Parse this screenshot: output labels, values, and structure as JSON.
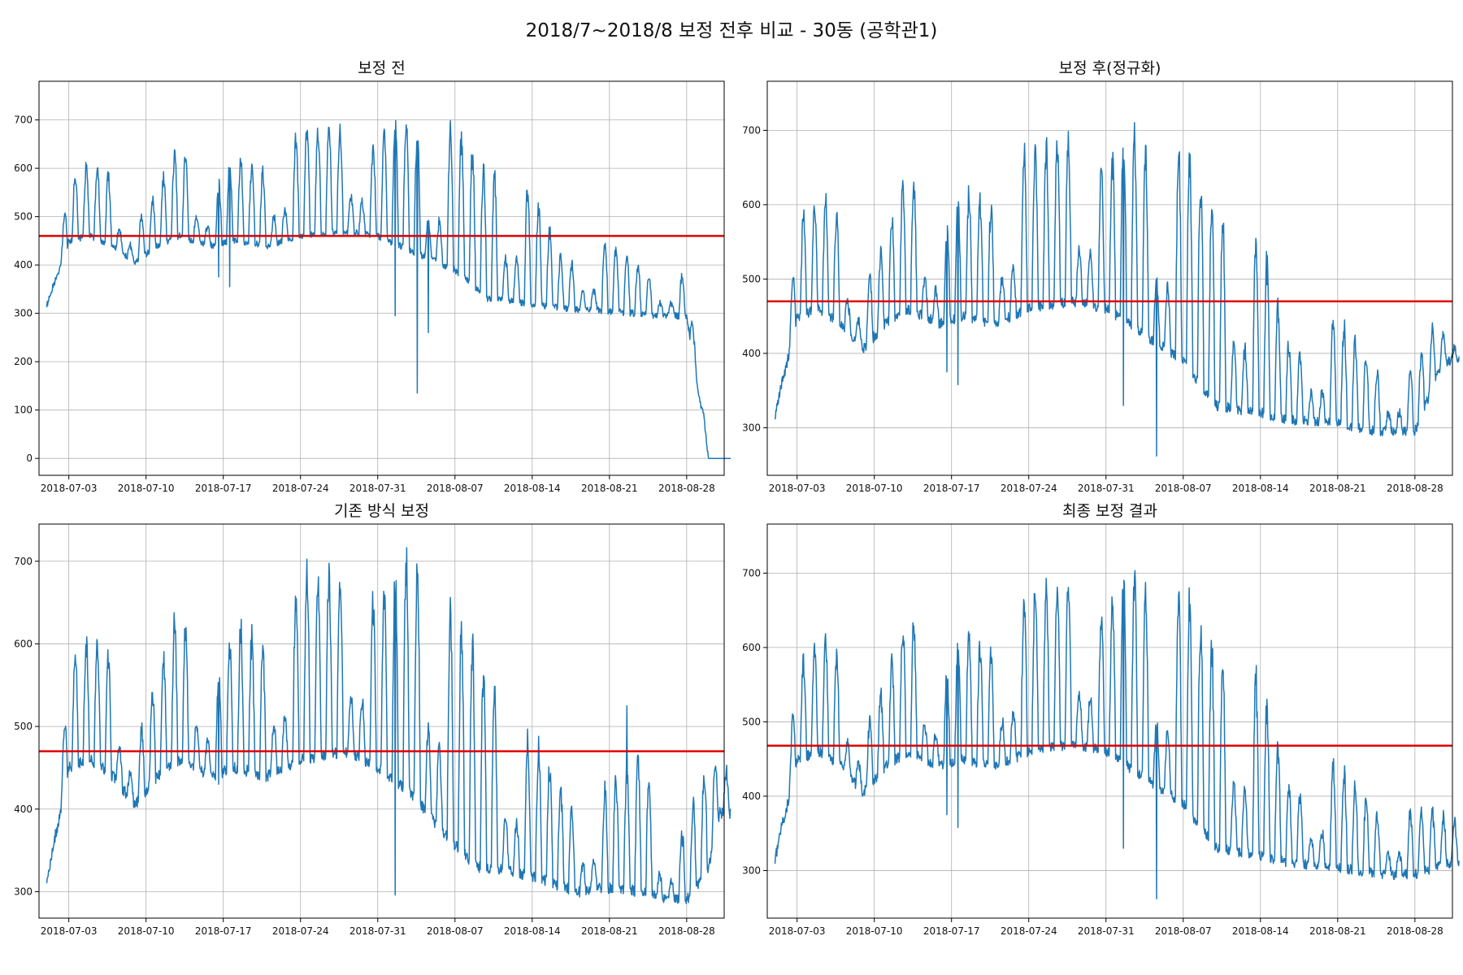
{
  "figure": {
    "title": "2018/7~2018/8 보정 전후 비교 - 30동 (공학관1)"
  },
  "chart_data": [
    {
      "type": "line",
      "title": "보정 전",
      "x_ticks": [
        "2018-07-03",
        "2018-07-10",
        "2018-07-17",
        "2018-07-24",
        "2018-07-31",
        "2018-08-07",
        "2018-08-14",
        "2018-08-21",
        "2018-08-28"
      ],
      "x_range": [
        "2018-07-01",
        "2018-08-31"
      ],
      "ylim": [
        -35,
        780
      ],
      "y_ticks": [
        0,
        100,
        200,
        300,
        400,
        500,
        600,
        700
      ],
      "grid": true,
      "reference_line": {
        "value": 460,
        "color": "#e00000"
      },
      "series_color": "#1f77b4",
      "trend": [
        {
          "date": "2018-07-01",
          "low": 315,
          "high": 320
        },
        {
          "date": "2018-07-02",
          "low": 380,
          "high": 400
        },
        {
          "date": "2018-07-03",
          "low": 450,
          "high": 580
        },
        {
          "date": "2018-07-05",
          "low": 460,
          "high": 620
        },
        {
          "date": "2018-07-07",
          "low": 440,
          "high": 590
        },
        {
          "date": "2018-07-09",
          "low": 405,
          "high": 485
        },
        {
          "date": "2018-07-11",
          "low": 440,
          "high": 560
        },
        {
          "date": "2018-07-13",
          "low": 460,
          "high": 665
        },
        {
          "date": "2018-07-16",
          "low": 440,
          "high": 545
        },
        {
          "date": "2018-07-18",
          "low": 450,
          "high": 635
        },
        {
          "date": "2018-07-21",
          "low": 440,
          "high": 600
        },
        {
          "date": "2018-07-24",
          "low": 460,
          "high": 690
        },
        {
          "date": "2018-07-28",
          "low": 470,
          "high": 700
        },
        {
          "date": "2018-07-31",
          "low": 460,
          "high": 650
        },
        {
          "date": "2018-08-02",
          "low": 440,
          "high": 735
        },
        {
          "date": "2018-08-05",
          "low": 410,
          "high": 650
        },
        {
          "date": "2018-08-07",
          "low": 390,
          "high": 705
        },
        {
          "date": "2018-08-10",
          "low": 330,
          "high": 610
        },
        {
          "date": "2018-08-14",
          "low": 320,
          "high": 570
        },
        {
          "date": "2018-08-17",
          "low": 310,
          "high": 400
        },
        {
          "date": "2018-08-21",
          "low": 305,
          "high": 460
        },
        {
          "date": "2018-08-25",
          "low": 295,
          "high": 370
        },
        {
          "date": "2018-08-28",
          "low": 295,
          "high": 385
        },
        {
          "date": "2018-08-30",
          "low": 0,
          "high": 0
        },
        {
          "date": "2018-08-31",
          "low": 0,
          "high": 0
        }
      ],
      "spikes": [
        {
          "date": "2018-08-03",
          "value": 135
        },
        {
          "date": "2018-08-01",
          "value": 295
        },
        {
          "date": "2018-08-04",
          "value": 260
        },
        {
          "date": "2018-07-16",
          "value": 375
        },
        {
          "date": "2018-07-17",
          "value": 355
        }
      ]
    },
    {
      "type": "line",
      "title": "보정 후(정규화)",
      "x_ticks": [
        "2018-07-03",
        "2018-07-10",
        "2018-07-17",
        "2018-07-24",
        "2018-07-31",
        "2018-08-07",
        "2018-08-14",
        "2018-08-21",
        "2018-08-28"
      ],
      "x_range": [
        "2018-07-01",
        "2018-08-31"
      ],
      "ylim": [
        236,
        766
      ],
      "y_ticks": [
        300,
        400,
        500,
        600,
        700
      ],
      "grid": true,
      "reference_line": {
        "value": 470,
        "color": "#e00000"
      },
      "series_color": "#1f77b4",
      "trend": [
        {
          "date": "2018-07-01",
          "low": 315,
          "high": 320
        },
        {
          "date": "2018-07-02",
          "low": 380,
          "high": 400
        },
        {
          "date": "2018-07-03",
          "low": 450,
          "high": 580
        },
        {
          "date": "2018-07-05",
          "low": 460,
          "high": 620
        },
        {
          "date": "2018-07-07",
          "low": 440,
          "high": 590
        },
        {
          "date": "2018-07-09",
          "low": 405,
          "high": 485
        },
        {
          "date": "2018-07-11",
          "low": 440,
          "high": 560
        },
        {
          "date": "2018-07-13",
          "low": 460,
          "high": 665
        },
        {
          "date": "2018-07-16",
          "low": 440,
          "high": 545
        },
        {
          "date": "2018-07-18",
          "low": 450,
          "high": 635
        },
        {
          "date": "2018-07-21",
          "low": 440,
          "high": 600
        },
        {
          "date": "2018-07-24",
          "low": 460,
          "high": 690
        },
        {
          "date": "2018-07-28",
          "low": 470,
          "high": 700
        },
        {
          "date": "2018-07-31",
          "low": 460,
          "high": 650
        },
        {
          "date": "2018-08-02",
          "low": 440,
          "high": 735
        },
        {
          "date": "2018-08-05",
          "low": 410,
          "high": 650
        },
        {
          "date": "2018-08-07",
          "low": 390,
          "high": 705
        },
        {
          "date": "2018-08-10",
          "low": 330,
          "high": 610
        },
        {
          "date": "2018-08-14",
          "low": 320,
          "high": 570
        },
        {
          "date": "2018-08-17",
          "low": 310,
          "high": 400
        },
        {
          "date": "2018-08-21",
          "low": 305,
          "high": 460
        },
        {
          "date": "2018-08-25",
          "low": 295,
          "high": 370
        },
        {
          "date": "2018-08-28",
          "low": 295,
          "high": 385
        },
        {
          "date": "2018-08-30",
          "low": 370,
          "high": 455
        },
        {
          "date": "2018-08-31",
          "low": 390,
          "high": 410
        }
      ],
      "spikes": [
        {
          "date": "2018-08-04",
          "value": 262
        },
        {
          "date": "2018-08-01",
          "value": 330
        },
        {
          "date": "2018-07-16",
          "value": 375
        },
        {
          "date": "2018-07-17",
          "value": 358
        }
      ]
    },
    {
      "type": "line",
      "title": "기존 방식 보정",
      "x_ticks": [
        "2018-07-03",
        "2018-07-10",
        "2018-07-17",
        "2018-07-24",
        "2018-07-31",
        "2018-08-07",
        "2018-08-14",
        "2018-08-21",
        "2018-08-28"
      ],
      "x_range": [
        "2018-07-01",
        "2018-08-31"
      ],
      "ylim": [
        268,
        745
      ],
      "y_ticks": [
        300,
        400,
        500,
        600,
        700
      ],
      "grid": true,
      "reference_line": {
        "value": 470,
        "color": "#e00000"
      },
      "series_color": "#1f77b4",
      "trend": [
        {
          "date": "2018-07-01",
          "low": 315,
          "high": 320
        },
        {
          "date": "2018-07-02",
          "low": 380,
          "high": 400
        },
        {
          "date": "2018-07-03",
          "low": 450,
          "high": 580
        },
        {
          "date": "2018-07-05",
          "low": 460,
          "high": 620
        },
        {
          "date": "2018-07-07",
          "low": 440,
          "high": 590
        },
        {
          "date": "2018-07-09",
          "low": 405,
          "high": 485
        },
        {
          "date": "2018-07-11",
          "low": 440,
          "high": 560
        },
        {
          "date": "2018-07-13",
          "low": 460,
          "high": 665
        },
        {
          "date": "2018-07-16",
          "low": 440,
          "high": 545
        },
        {
          "date": "2018-07-18",
          "low": 450,
          "high": 635
        },
        {
          "date": "2018-07-21",
          "low": 440,
          "high": 600
        },
        {
          "date": "2018-07-24",
          "low": 460,
          "high": 690
        },
        {
          "date": "2018-07-28",
          "low": 470,
          "high": 700
        },
        {
          "date": "2018-07-31",
          "low": 450,
          "high": 660
        },
        {
          "date": "2018-08-03",
          "low": 420,
          "high": 725
        },
        {
          "date": "2018-08-06",
          "low": 370,
          "high": 670
        },
        {
          "date": "2018-08-09",
          "low": 330,
          "high": 610
        },
        {
          "date": "2018-08-12",
          "low": 325,
          "high": 510
        },
        {
          "date": "2018-08-15",
          "low": 315,
          "high": 480
        },
        {
          "date": "2018-08-18",
          "low": 300,
          "high": 395
        },
        {
          "date": "2018-08-21",
          "low": 305,
          "high": 440
        },
        {
          "date": "2018-08-24",
          "low": 300,
          "high": 485
        },
        {
          "date": "2018-08-26",
          "low": 290,
          "high": 350
        },
        {
          "date": "2018-08-28",
          "low": 290,
          "high": 385
        },
        {
          "date": "2018-08-30",
          "low": 330,
          "high": 470
        },
        {
          "date": "2018-08-31",
          "low": 395,
          "high": 450
        }
      ],
      "spikes": [
        {
          "date": "2018-08-01",
          "value": 296
        },
        {
          "date": "2018-08-22",
          "value": 525
        },
        {
          "date": "2018-07-16",
          "value": 430
        }
      ]
    },
    {
      "type": "line",
      "title": "최종 보정 결과",
      "x_ticks": [
        "2018-07-03",
        "2018-07-10",
        "2018-07-17",
        "2018-07-24",
        "2018-07-31",
        "2018-08-07",
        "2018-08-14",
        "2018-08-21",
        "2018-08-28"
      ],
      "x_range": [
        "2018-07-01",
        "2018-08-31"
      ],
      "ylim": [
        236,
        766
      ],
      "y_ticks": [
        300,
        400,
        500,
        600,
        700
      ],
      "grid": true,
      "reference_line": {
        "value": 468,
        "color": "#e00000"
      },
      "series_color": "#1f77b4",
      "trend": [
        {
          "date": "2018-07-01",
          "low": 315,
          "high": 320
        },
        {
          "date": "2018-07-02",
          "low": 380,
          "high": 400
        },
        {
          "date": "2018-07-03",
          "low": 450,
          "high": 580
        },
        {
          "date": "2018-07-05",
          "low": 460,
          "high": 620
        },
        {
          "date": "2018-07-07",
          "low": 440,
          "high": 590
        },
        {
          "date": "2018-07-09",
          "low": 405,
          "high": 485
        },
        {
          "date": "2018-07-11",
          "low": 440,
          "high": 560
        },
        {
          "date": "2018-07-13",
          "low": 460,
          "high": 665
        },
        {
          "date": "2018-07-16",
          "low": 440,
          "high": 545
        },
        {
          "date": "2018-07-18",
          "low": 450,
          "high": 635
        },
        {
          "date": "2018-07-21",
          "low": 440,
          "high": 600
        },
        {
          "date": "2018-07-24",
          "low": 460,
          "high": 690
        },
        {
          "date": "2018-07-28",
          "low": 470,
          "high": 700
        },
        {
          "date": "2018-07-31",
          "low": 460,
          "high": 650
        },
        {
          "date": "2018-08-02",
          "low": 440,
          "high": 735
        },
        {
          "date": "2018-08-05",
          "low": 410,
          "high": 650
        },
        {
          "date": "2018-08-07",
          "low": 390,
          "high": 705
        },
        {
          "date": "2018-08-10",
          "low": 330,
          "high": 610
        },
        {
          "date": "2018-08-14",
          "low": 320,
          "high": 570
        },
        {
          "date": "2018-08-17",
          "low": 310,
          "high": 400
        },
        {
          "date": "2018-08-21",
          "low": 305,
          "high": 460
        },
        {
          "date": "2018-08-25",
          "low": 295,
          "high": 370
        },
        {
          "date": "2018-08-28",
          "low": 295,
          "high": 385
        },
        {
          "date": "2018-08-30",
          "low": 305,
          "high": 385
        },
        {
          "date": "2018-08-31",
          "low": 310,
          "high": 370
        }
      ],
      "spikes": [
        {
          "date": "2018-08-04",
          "value": 262
        },
        {
          "date": "2018-08-01",
          "value": 330
        },
        {
          "date": "2018-07-16",
          "value": 375
        },
        {
          "date": "2018-07-17",
          "value": 358
        }
      ]
    }
  ]
}
